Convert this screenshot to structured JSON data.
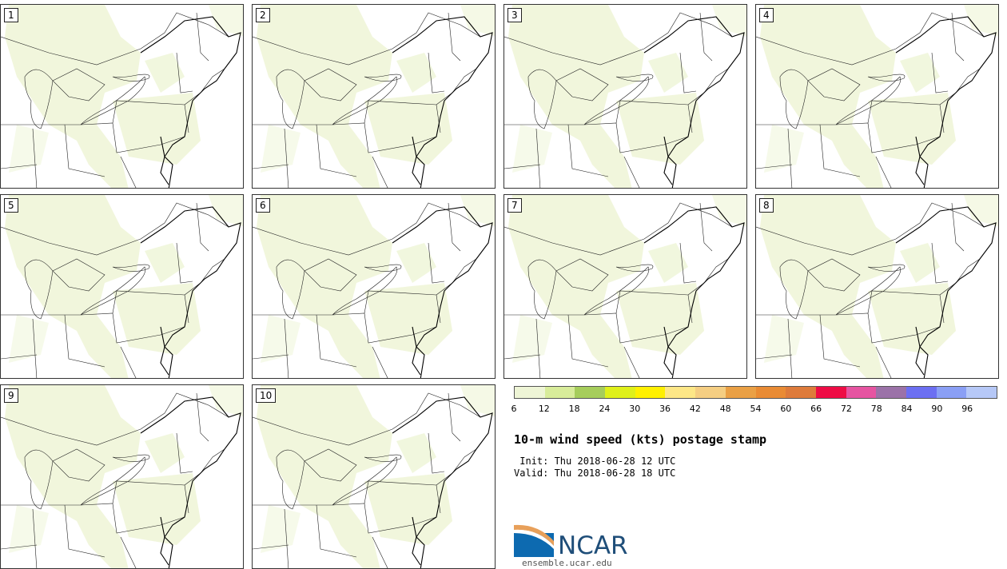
{
  "panels": [
    {
      "label": "1"
    },
    {
      "label": "2"
    },
    {
      "label": "3"
    },
    {
      "label": "4"
    },
    {
      "label": "5"
    },
    {
      "label": "6"
    },
    {
      "label": "7"
    },
    {
      "label": "8"
    },
    {
      "label": "9"
    },
    {
      "label": "10"
    }
  ],
  "colorbar": {
    "colors": [
      "#eef5d6",
      "#d8ec9a",
      "#a6cd5b",
      "#dff01a",
      "#fff000",
      "#fde787",
      "#f5ce82",
      "#eaa045",
      "#e98b34",
      "#de7b3b",
      "#ee0c45",
      "#e654a1",
      "#9b72a8",
      "#6c6ff2",
      "#8a9ff5",
      "#b6c8f7"
    ],
    "ticks": [
      "6",
      "12",
      "18",
      "24",
      "30",
      "36",
      "42",
      "48",
      "54",
      "60",
      "66",
      "72",
      "78",
      "84",
      "90",
      "96"
    ]
  },
  "title": "10-m wind speed (kts) postage stamp",
  "init": " Init: Thu 2018-06-28 12 UTC",
  "valid": "Valid: Thu 2018-06-28 18 UTC",
  "logo": {
    "text": "NCAR",
    "url": "ensemble.ucar.edu",
    "colors": {
      "blue": "#1f4e79",
      "orange": "#e8a05a"
    }
  }
}
